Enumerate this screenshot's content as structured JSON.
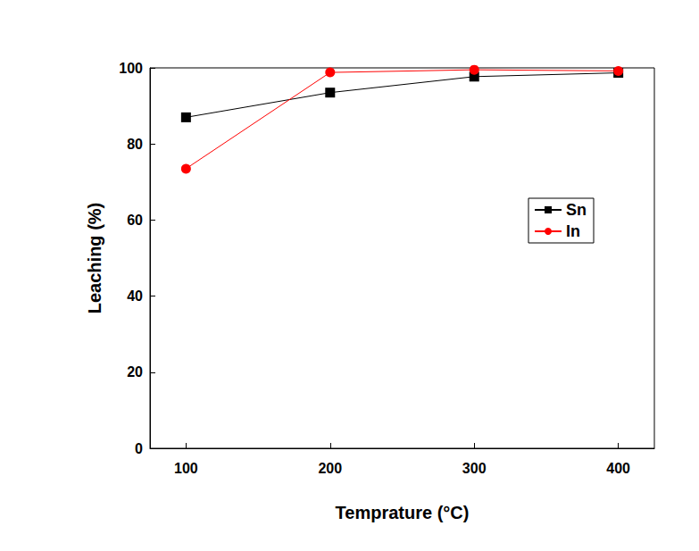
{
  "chart_data": {
    "type": "line",
    "x_label": "Temprature (°C)",
    "y_label": "Leaching (%)",
    "x": [
      100,
      200,
      300,
      400
    ],
    "series": [
      {
        "name": "Sn",
        "color": "#000000",
        "marker": "square",
        "values": [
          87,
          93.5,
          97.7,
          98.7
        ]
      },
      {
        "name": "In",
        "color": "#ff0000",
        "marker": "circle",
        "values": [
          73.5,
          98.8,
          99.5,
          99.2
        ]
      }
    ],
    "xlim": [
      75,
      425
    ],
    "xticks": [
      100,
      200,
      300,
      400
    ],
    "ylim": [
      0,
      100
    ],
    "yticks": [
      0,
      20,
      40,
      60,
      80,
      100
    ],
    "grid": false,
    "legend": "right"
  }
}
